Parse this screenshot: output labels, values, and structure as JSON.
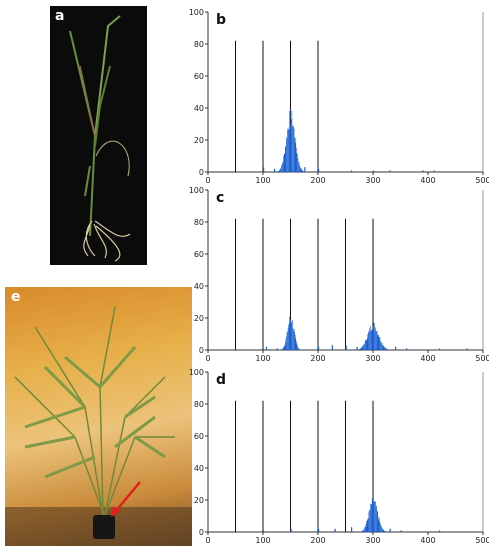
{
  "photos": {
    "a": {
      "letter": "a"
    },
    "e": {
      "letter": "e"
    }
  },
  "colors": {
    "bars": "#1a5fd0",
    "ref_lines": "#111111",
    "axis": "#333333",
    "arrow": "#e02020"
  },
  "chart_data": [
    {
      "type": "bar",
      "letter": "b",
      "xlim": [
        0,
        500
      ],
      "ylim": [
        0,
        100
      ],
      "x_ticks": [
        0,
        100,
        200,
        300,
        400,
        500
      ],
      "y_ticks": [
        0,
        20,
        40,
        60,
        80,
        100
      ],
      "reference_lines": [
        50,
        100,
        150,
        200
      ],
      "peaks": [
        {
          "center": 150,
          "height": 40,
          "spread": 8
        }
      ],
      "minor_bins": [
        [
          100,
          3
        ],
        [
          120,
          2
        ],
        [
          175,
          3
        ],
        [
          200,
          2
        ],
        [
          260,
          1
        ],
        [
          300,
          1
        ],
        [
          330,
          1
        ],
        [
          390,
          1
        ],
        [
          410,
          1
        ]
      ]
    },
    {
      "type": "bar",
      "letter": "c",
      "xlim": [
        0,
        500
      ],
      "ylim": [
        0,
        100
      ],
      "x_ticks": [
        0,
        100,
        200,
        300,
        400,
        500
      ],
      "y_ticks": [
        0,
        20,
        40,
        60,
        80,
        100
      ],
      "reference_lines": [
        50,
        100,
        150,
        200,
        250,
        300
      ],
      "peaks": [
        {
          "center": 150,
          "height": 23,
          "spread": 6
        },
        {
          "center": 300,
          "height": 18,
          "spread": 10
        }
      ],
      "minor_bins": [
        [
          105,
          2
        ],
        [
          125,
          1
        ],
        [
          200,
          2
        ],
        [
          225,
          3
        ],
        [
          250,
          3
        ],
        [
          270,
          2
        ],
        [
          340,
          2
        ],
        [
          360,
          1
        ],
        [
          420,
          1
        ],
        [
          470,
          1
        ]
      ]
    },
    {
      "type": "bar",
      "letter": "d",
      "xlim": [
        0,
        500
      ],
      "ylim": [
        0,
        100
      ],
      "x_ticks": [
        0,
        100,
        200,
        300,
        400,
        500
      ],
      "y_ticks": [
        0,
        20,
        40,
        60,
        80,
        100
      ],
      "reference_lines": [
        50,
        100,
        150,
        200,
        250,
        300
      ],
      "peaks": [
        {
          "center": 300,
          "height": 22,
          "spread": 8
        }
      ],
      "minor_bins": [
        [
          100,
          1
        ],
        [
          150,
          2
        ],
        [
          200,
          2
        ],
        [
          230,
          2
        ],
        [
          260,
          3
        ],
        [
          330,
          2
        ],
        [
          350,
          1
        ],
        [
          420,
          1
        ]
      ]
    }
  ]
}
